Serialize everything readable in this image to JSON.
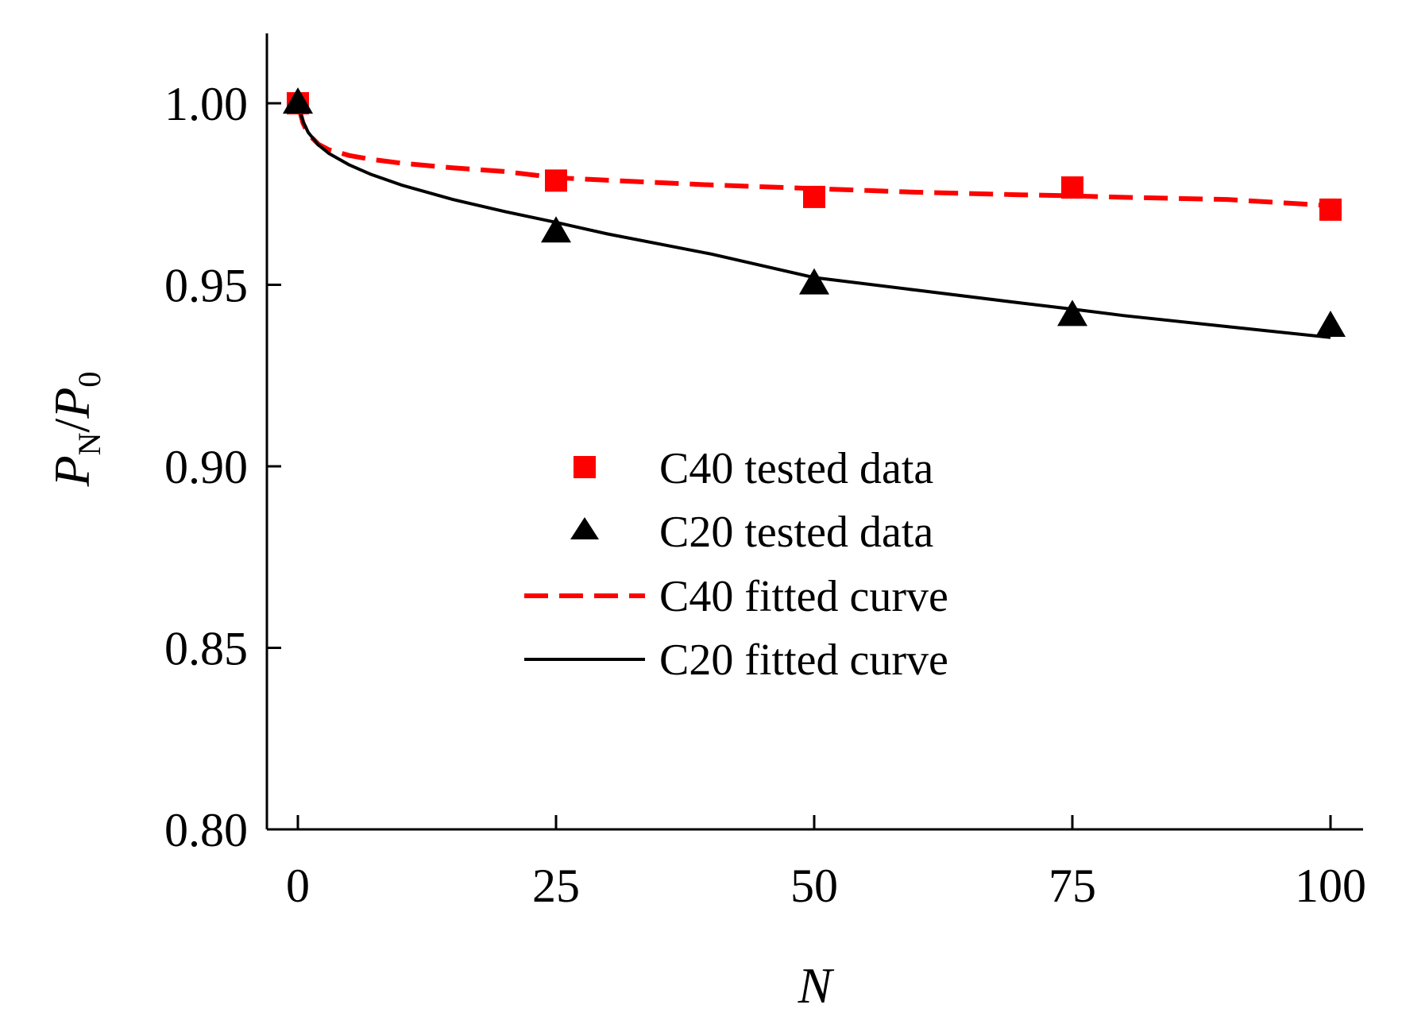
{
  "chart_data": {
    "type": "scatter",
    "title": "",
    "xlabel": "N",
    "ylabel": {
      "main": "P",
      "sub1": "N",
      "sep": "/",
      "main2": "P",
      "sub2": "0"
    },
    "xlim": [
      -3,
      103
    ],
    "ylim": [
      0.8,
      1.02
    ],
    "xticks": [
      0,
      25,
      50,
      75,
      100
    ],
    "xtick_labels": [
      "0",
      "25",
      "50",
      "75",
      "100"
    ],
    "yticks": [
      0.8,
      0.85,
      0.9,
      0.95,
      1.0
    ],
    "ytick_labels": [
      "0.80",
      "0.85",
      "0.90",
      "0.95",
      "1.00"
    ],
    "grid": false,
    "legend_position": "center",
    "colors": {
      "c40": "#ff0000",
      "c20": "#000000"
    },
    "series": [
      {
        "name": "C40 tested data",
        "kind": "scatter",
        "marker": "square",
        "color": "#ff0000",
        "x": [
          0,
          25,
          50,
          75,
          100
        ],
        "y": [
          1.0,
          0.9787,
          0.9742,
          0.9768,
          0.9707
        ]
      },
      {
        "name": "C20 tested data",
        "kind": "scatter",
        "marker": "triangle",
        "color": "#000000",
        "x": [
          0,
          25,
          50,
          75,
          100
        ],
        "y": [
          1.0,
          0.9645,
          0.9502,
          0.9415,
          0.9385
        ]
      },
      {
        "name": "C40 fitted curve",
        "kind": "line",
        "style": "dashed",
        "color": "#ff0000",
        "x": [
          0.05,
          0.5,
          1,
          2,
          3,
          5,
          7,
          10,
          15,
          20,
          25,
          30,
          40,
          50,
          60,
          70,
          75,
          80,
          90,
          100
        ],
        "y": [
          0.9993,
          0.9945,
          0.9915,
          0.9887,
          0.9872,
          0.9856,
          0.9846,
          0.9835,
          0.9822,
          0.9812,
          0.9795,
          0.9788,
          0.9775,
          0.9765,
          0.9755,
          0.9748,
          0.9745,
          0.9741,
          0.9735,
          0.9718
        ]
      },
      {
        "name": "C20 fitted curve",
        "kind": "line",
        "style": "solid",
        "color": "#000000",
        "x": [
          0.05,
          0.5,
          1,
          2,
          3,
          5,
          7,
          10,
          15,
          20,
          25,
          30,
          40,
          50,
          60,
          70,
          75,
          80,
          90,
          100
        ],
        "y": [
          0.9995,
          0.995,
          0.992,
          0.9885,
          0.9862,
          0.983,
          0.9805,
          0.9775,
          0.9735,
          0.9702,
          0.9672,
          0.964,
          0.9585,
          0.952,
          0.9485,
          0.945,
          0.9433,
          0.9415,
          0.9385,
          0.9355
        ]
      }
    ]
  }
}
